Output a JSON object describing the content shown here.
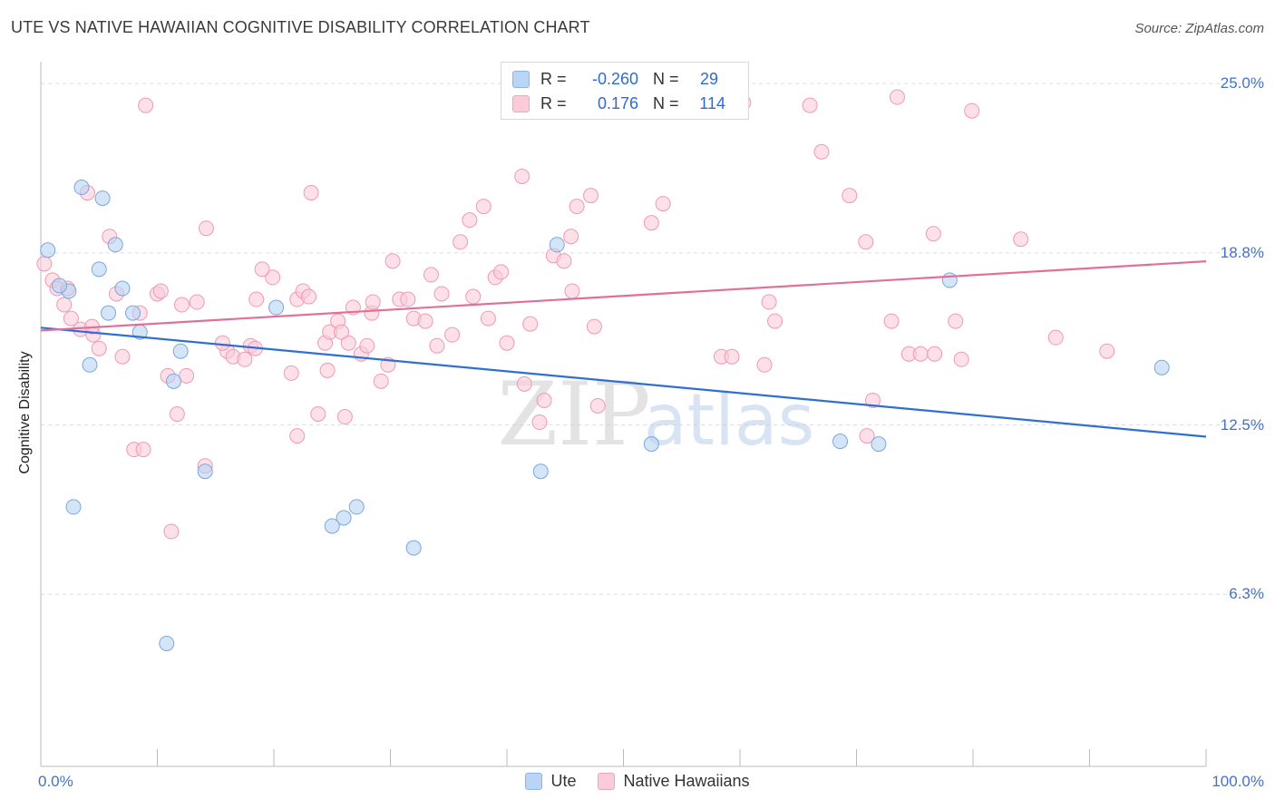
{
  "header": {
    "title": "UTE VS NATIVE HAWAIIAN COGNITIVE DISABILITY CORRELATION CHART",
    "source": "Source: ZipAtlas.com"
  },
  "watermark": {
    "zip": "ZIP",
    "atlas": "atlas"
  },
  "stats": {
    "ute": {
      "r_label": "R =",
      "r_value": "-0.260",
      "n_label": "N =",
      "n_value": "29"
    },
    "native_hawaiian": {
      "r_label": "R =",
      "r_value": "0.176",
      "n_label": "N =",
      "n_value": "114"
    }
  },
  "legend": {
    "items": [
      {
        "label": "Ute",
        "color": "#b9d4f4"
      },
      {
        "label": "Native Hawaiians",
        "color": "#fbcbd9"
      }
    ]
  },
  "colors": {
    "blue_fill": "#b9d4f4",
    "blue_stroke": "#7aa7e0",
    "blue_line": "#2f6fd0",
    "pink_fill": "#fbcbd9",
    "pink_stroke": "#ee9ab5",
    "pink_line": "#e0709a",
    "grid": "#dddddd",
    "tick_text": "#4472c4"
  },
  "chart_data": {
    "type": "scatter",
    "title": "UTE VS NATIVE HAWAIIAN COGNITIVE DISABILITY CORRELATION CHART",
    "xlabel": "",
    "ylabel": "Cognitive Disability",
    "xlim": [
      0,
      100
    ],
    "ylim": [
      0,
      25.8
    ],
    "x_tick_labels": [
      "0.0%",
      "100.0%"
    ],
    "y_ticks": [
      {
        "value": 25.0,
        "label": "25.0%"
      },
      {
        "value": 18.8,
        "label": "18.8%"
      },
      {
        "value": 12.5,
        "label": "12.5%"
      },
      {
        "value": 6.3,
        "label": "6.3%"
      }
    ],
    "grid": true,
    "series": [
      {
        "name": "Ute",
        "color": "#b9d4f4",
        "points": [
          [
            0.6,
            18.9
          ],
          [
            3.5,
            21.2
          ],
          [
            5.3,
            20.8
          ],
          [
            6.4,
            19.1
          ],
          [
            5.0,
            18.2
          ],
          [
            2.4,
            17.4
          ],
          [
            1.6,
            17.6
          ],
          [
            7.0,
            17.5
          ],
          [
            20.2,
            16.8
          ],
          [
            5.8,
            16.6
          ],
          [
            7.9,
            16.6
          ],
          [
            8.5,
            15.9
          ],
          [
            12.0,
            15.2
          ],
          [
            4.2,
            14.7
          ],
          [
            11.4,
            14.1
          ],
          [
            44.3,
            19.1
          ],
          [
            2.8,
            9.5
          ],
          [
            26.0,
            9.1
          ],
          [
            27.1,
            9.5
          ],
          [
            14.1,
            10.8
          ],
          [
            42.9,
            10.8
          ],
          [
            52.4,
            11.8
          ],
          [
            68.6,
            11.9
          ],
          [
            71.9,
            11.8
          ],
          [
            78.0,
            17.8
          ],
          [
            96.2,
            14.6
          ],
          [
            10.8,
            4.5
          ],
          [
            25.0,
            8.8
          ],
          [
            32.0,
            8.0
          ]
        ],
        "trend": {
          "x": [
            0,
            100
          ],
          "y": [
            16.06,
            12.07
          ]
        }
      },
      {
        "name": "Native Hawaiians",
        "color": "#fbcbd9",
        "points": [
          [
            0.3,
            18.4
          ],
          [
            1.0,
            17.8
          ],
          [
            1.4,
            17.5
          ],
          [
            2.3,
            17.5
          ],
          [
            2.0,
            16.9
          ],
          [
            2.6,
            16.4
          ],
          [
            3.4,
            16.0
          ],
          [
            4.5,
            15.8
          ],
          [
            4.4,
            16.1
          ],
          [
            5.0,
            15.3
          ],
          [
            7.0,
            15.0
          ],
          [
            5.9,
            19.4
          ],
          [
            4.0,
            21.0
          ],
          [
            9.0,
            24.2
          ],
          [
            6.5,
            17.3
          ],
          [
            8.5,
            16.6
          ],
          [
            10.0,
            17.3
          ],
          [
            10.3,
            17.4
          ],
          [
            10.9,
            14.3
          ],
          [
            12.5,
            14.3
          ],
          [
            11.7,
            12.9
          ],
          [
            8.0,
            11.6
          ],
          [
            8.8,
            11.6
          ],
          [
            11.2,
            8.6
          ],
          [
            14.1,
            11.0
          ],
          [
            12.1,
            16.9
          ],
          [
            13.4,
            17.0
          ],
          [
            14.2,
            19.7
          ],
          [
            16.0,
            15.2
          ],
          [
            16.5,
            15.0
          ],
          [
            15.6,
            15.5
          ],
          [
            17.5,
            14.9
          ],
          [
            18.0,
            15.4
          ],
          [
            18.4,
            15.3
          ],
          [
            19.9,
            17.9
          ],
          [
            18.5,
            17.1
          ],
          [
            19.0,
            18.2
          ],
          [
            21.5,
            14.4
          ],
          [
            22.0,
            17.1
          ],
          [
            22.5,
            17.4
          ],
          [
            23.0,
            17.2
          ],
          [
            23.2,
            21.0
          ],
          [
            22.0,
            12.1
          ],
          [
            23.8,
            12.9
          ],
          [
            24.4,
            15.5
          ],
          [
            24.8,
            15.9
          ],
          [
            25.5,
            16.3
          ],
          [
            24.6,
            14.5
          ],
          [
            26.4,
            15.5
          ],
          [
            25.8,
            15.9
          ],
          [
            26.8,
            16.8
          ],
          [
            27.5,
            15.1
          ],
          [
            28.4,
            16.6
          ],
          [
            28.5,
            17.0
          ],
          [
            29.2,
            14.1
          ],
          [
            29.8,
            14.7
          ],
          [
            28.0,
            15.4
          ],
          [
            26.1,
            12.8
          ],
          [
            30.2,
            18.5
          ],
          [
            30.8,
            17.1
          ],
          [
            31.5,
            17.1
          ],
          [
            32.0,
            16.4
          ],
          [
            33.0,
            16.3
          ],
          [
            33.5,
            18.0
          ],
          [
            34.4,
            17.3
          ],
          [
            34.0,
            15.4
          ],
          [
            35.3,
            15.8
          ],
          [
            36.0,
            19.2
          ],
          [
            36.8,
            20.0
          ],
          [
            37.1,
            17.2
          ],
          [
            38.4,
            16.4
          ],
          [
            38.0,
            20.5
          ],
          [
            39.0,
            17.9
          ],
          [
            39.5,
            18.1
          ],
          [
            40.0,
            15.5
          ],
          [
            41.3,
            21.6
          ],
          [
            42.0,
            16.2
          ],
          [
            41.5,
            14.0
          ],
          [
            42.8,
            12.6
          ],
          [
            43.2,
            13.4
          ],
          [
            44.0,
            18.7
          ],
          [
            44.9,
            18.5
          ],
          [
            45.5,
            19.4
          ],
          [
            45.6,
            17.4
          ],
          [
            46.0,
            20.5
          ],
          [
            47.2,
            20.9
          ],
          [
            47.5,
            16.1
          ],
          [
            47.8,
            13.2
          ],
          [
            52.4,
            19.9
          ],
          [
            53.4,
            20.6
          ],
          [
            58.4,
            15.0
          ],
          [
            59.3,
            15.0
          ],
          [
            60.3,
            24.3
          ],
          [
            62.1,
            14.7
          ],
          [
            63.0,
            16.3
          ],
          [
            62.5,
            17.0
          ],
          [
            66.0,
            24.2
          ],
          [
            67.0,
            22.5
          ],
          [
            69.4,
            20.9
          ],
          [
            70.8,
            19.2
          ],
          [
            70.9,
            12.1
          ],
          [
            71.4,
            13.4
          ],
          [
            73.5,
            24.5
          ],
          [
            73.0,
            16.3
          ],
          [
            74.5,
            15.1
          ],
          [
            75.5,
            15.1
          ],
          [
            76.7,
            15.1
          ],
          [
            76.6,
            19.5
          ],
          [
            79.0,
            14.9
          ],
          [
            78.5,
            16.3
          ],
          [
            79.9,
            24.0
          ],
          [
            84.1,
            19.3
          ],
          [
            87.1,
            15.7
          ],
          [
            91.5,
            15.2
          ]
        ],
        "trend": {
          "x": [
            0,
            100
          ],
          "y": [
            15.96,
            18.49
          ]
        }
      }
    ]
  }
}
